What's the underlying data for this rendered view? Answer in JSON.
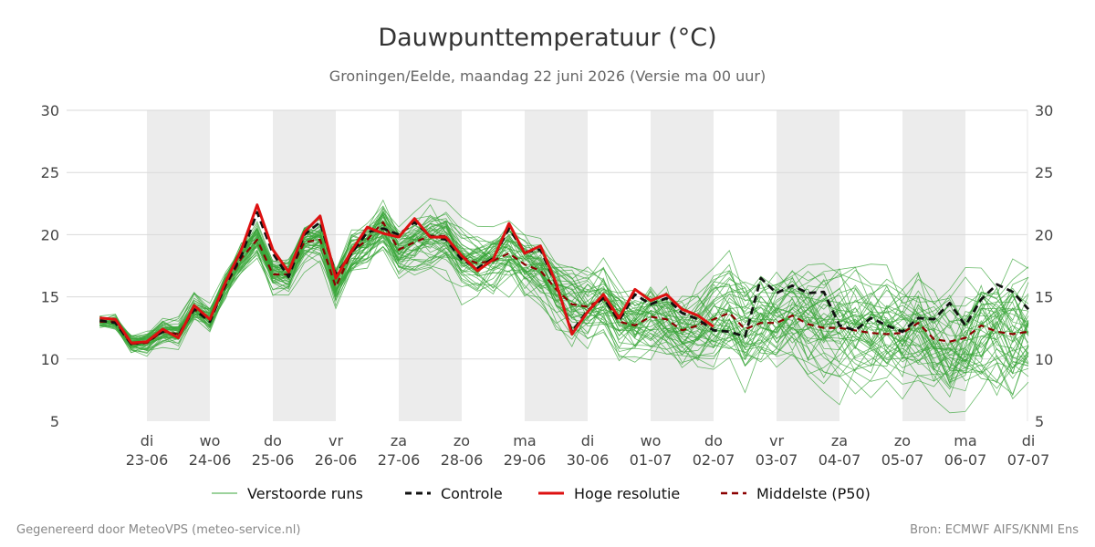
{
  "chart_data": {
    "type": "line",
    "title": "Dauwpunttemperatuur (°C)",
    "subtitle": "Groningen/Eelde, maandag 22 juni 2026 (Versie ma 00 uur)",
    "ylim": [
      5,
      30
    ],
    "yticks": [
      5,
      10,
      15,
      20,
      25,
      30
    ],
    "xlim": [
      -0.75,
      14.0
    ],
    "grid": true,
    "shaded_days": [
      0,
      2,
      4,
      6,
      8,
      10,
      12
    ],
    "xticks": [
      {
        "x": 0,
        "day": "di",
        "date": "23-06"
      },
      {
        "x": 1,
        "day": "wo",
        "date": "24-06"
      },
      {
        "x": 2,
        "day": "do",
        "date": "25-06"
      },
      {
        "x": 3,
        "day": "vr",
        "date": "26-06"
      },
      {
        "x": 4,
        "day": "za",
        "date": "27-06"
      },
      {
        "x": 5,
        "day": "zo",
        "date": "28-06"
      },
      {
        "x": 6,
        "day": "ma",
        "date": "29-06"
      },
      {
        "x": 7,
        "day": "di",
        "date": "30-06"
      },
      {
        "x": 8,
        "day": "wo",
        "date": "01-07"
      },
      {
        "x": 9,
        "day": "do",
        "date": "02-07"
      },
      {
        "x": 10,
        "day": "vr",
        "date": "03-07"
      },
      {
        "x": 11,
        "day": "za",
        "date": "04-07"
      },
      {
        "x": 12,
        "day": "zo",
        "date": "05-07"
      },
      {
        "x": 13,
        "day": "ma",
        "date": "06-07"
      },
      {
        "x": 14,
        "day": "di",
        "date": "07-07"
      }
    ],
    "legend": {
      "placement": "bottom",
      "items": [
        {
          "key": "ensemble",
          "label": "Verstoorde runs"
        },
        {
          "key": "control",
          "label": "Controle"
        },
        {
          "key": "hires",
          "label": "Hoge resolutie"
        },
        {
          "key": "median",
          "label": "Middelste (P50)"
        }
      ]
    },
    "colors": {
      "ensemble": "#3aa63a",
      "control": "#111111",
      "hires": "#dd1111",
      "median": "#8b0000",
      "shade": "#ececec",
      "grid": "#d9d9d9"
    },
    "series": [
      {
        "key": "hires",
        "x": [
          -0.75,
          -0.5,
          -0.25,
          0.0,
          0.25,
          0.5,
          0.75,
          1.0,
          1.25,
          1.5,
          1.75,
          2.0,
          2.25,
          2.5,
          2.75,
          3.0,
          3.25,
          3.5,
          3.75,
          4.0,
          4.25,
          4.5,
          4.75,
          5.0,
          5.25,
          5.5,
          5.75,
          6.0,
          6.25,
          6.5,
          6.75,
          7.0,
          7.25,
          7.5,
          7.75,
          8.0,
          8.25,
          8.5,
          8.75,
          9.0
        ],
        "y": [
          13.3,
          13.2,
          11.3,
          11.4,
          12.4,
          11.7,
          14.3,
          13.2,
          16.2,
          18.8,
          22.4,
          18.8,
          17.0,
          20.2,
          21.5,
          16.5,
          18.7,
          20.6,
          20.1,
          19.8,
          21.3,
          19.8,
          19.8,
          18.3,
          17.1,
          18.0,
          20.9,
          18.5,
          19.1,
          16.1,
          12.0,
          13.8,
          15.2,
          13.3,
          15.6,
          14.7,
          15.2,
          14.0,
          13.5,
          12.6
        ]
      },
      {
        "key": "control",
        "x": [
          -0.75,
          -0.5,
          -0.25,
          0.0,
          0.25,
          0.5,
          0.75,
          1.0,
          1.25,
          1.5,
          1.75,
          2.0,
          2.25,
          2.5,
          2.75,
          3.0,
          3.25,
          3.5,
          3.75,
          4.0,
          4.25,
          4.5,
          4.75,
          5.0,
          5.25,
          5.5,
          5.75,
          6.0,
          6.25,
          6.5,
          6.75,
          7.0,
          7.25,
          7.5,
          7.75,
          8.0,
          8.25,
          8.5,
          8.75,
          9.0,
          9.25,
          9.5,
          9.75,
          10.0,
          10.25,
          10.5,
          10.75,
          11.0,
          11.25,
          11.5,
          11.75,
          12.0,
          12.25,
          12.5,
          12.75,
          13.0,
          13.25,
          13.5,
          13.75,
          14.0
        ],
        "y": [
          13.1,
          12.9,
          11.2,
          11.4,
          12.2,
          11.9,
          14.0,
          13.0,
          16.0,
          18.3,
          21.8,
          18.5,
          16.6,
          20.0,
          21.0,
          16.8,
          18.5,
          20.2,
          20.5,
          20.0,
          21.0,
          19.9,
          19.6,
          18.0,
          17.3,
          18.1,
          20.5,
          18.6,
          18.8,
          16.0,
          12.2,
          13.9,
          14.9,
          13.1,
          15.2,
          14.4,
          14.9,
          13.7,
          13.2,
          12.3,
          12.2,
          11.8,
          16.5,
          15.3,
          15.9,
          15.3,
          15.4,
          12.7,
          12.3,
          13.3,
          12.7,
          12.2,
          13.3,
          13.2,
          14.5,
          12.7,
          14.8,
          16.0,
          15.4,
          14.0
        ]
      },
      {
        "key": "median",
        "x": [
          -0.75,
          -0.5,
          -0.25,
          0.0,
          0.25,
          0.5,
          0.75,
          1.0,
          1.25,
          1.5,
          1.75,
          2.0,
          2.25,
          2.5,
          2.75,
          3.0,
          3.25,
          3.5,
          3.75,
          4.0,
          4.25,
          4.5,
          4.75,
          5.0,
          5.25,
          5.5,
          5.75,
          6.0,
          6.25,
          6.5,
          6.75,
          7.0,
          7.25,
          7.5,
          7.75,
          8.0,
          8.25,
          8.5,
          8.75,
          9.0,
          9.25,
          9.5,
          9.75,
          10.0,
          10.25,
          10.5,
          10.75,
          11.0,
          11.25,
          11.5,
          11.75,
          12.0,
          12.25,
          12.5,
          12.75,
          13.0,
          13.25,
          13.5,
          13.75,
          14.0
        ],
        "y": [
          13.0,
          13.0,
          11.2,
          11.3,
          12.2,
          12.0,
          14.0,
          13.2,
          15.9,
          18.1,
          19.6,
          16.8,
          16.8,
          19.4,
          19.6,
          15.8,
          18.6,
          19.6,
          21.0,
          18.8,
          19.4,
          19.9,
          19.9,
          18.2,
          17.7,
          17.9,
          18.5,
          17.6,
          17.1,
          15.6,
          14.4,
          14.2,
          14.9,
          13.0,
          12.7,
          13.4,
          13.2,
          12.3,
          12.7,
          13.2,
          13.7,
          12.4,
          12.9,
          12.9,
          13.5,
          12.8,
          12.5,
          12.5,
          12.3,
          12.1,
          12.0,
          12.1,
          12.9,
          11.6,
          11.4,
          11.7,
          12.7,
          12.2,
          12.0,
          12.2
        ]
      }
    ]
  },
  "footer": {
    "left": "Gegenereerd door MeteoVPS (meteo-service.nl)",
    "right": "Bron: ECMWF AIFS/KNMI Ens"
  }
}
